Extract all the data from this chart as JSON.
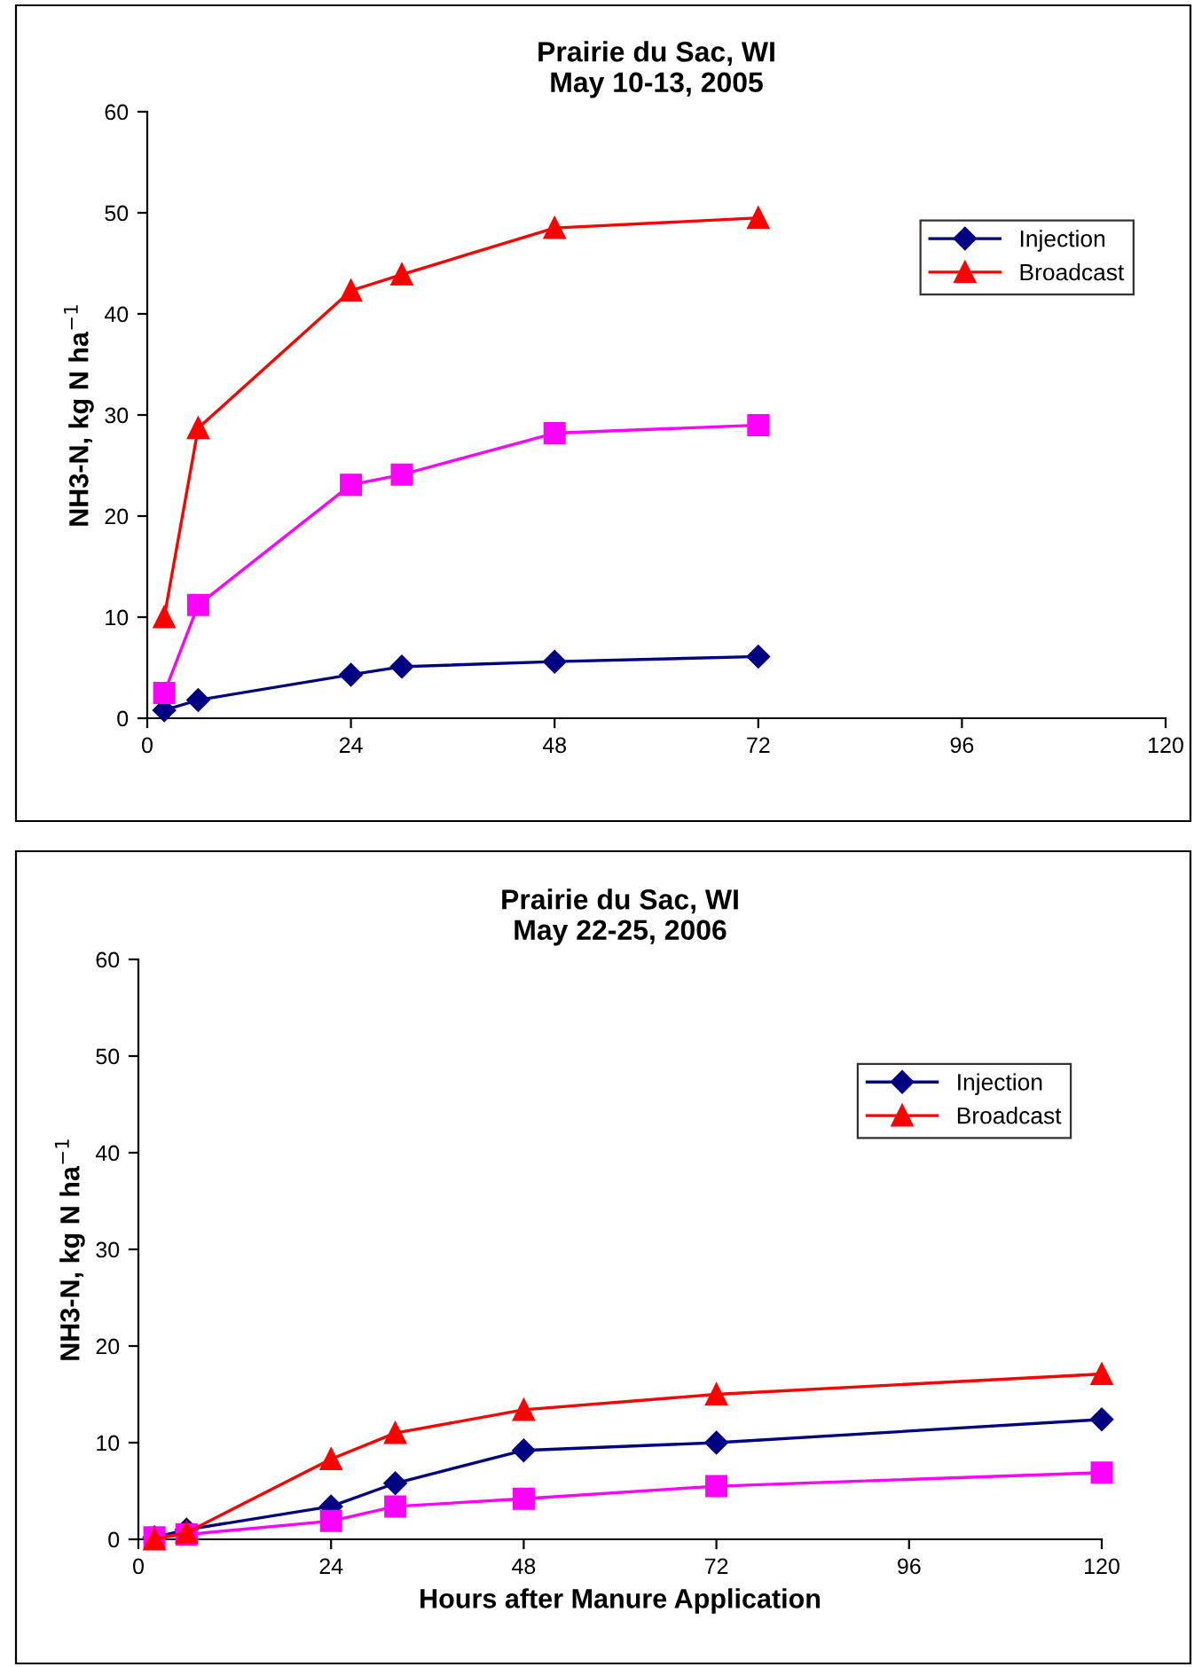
{
  "chart_data": [
    {
      "type": "line",
      "title": "Prairie du Sac, WI\nMay 10-13, 2005",
      "ylabel": "NH3-N, kg N ha$^{−1}$",
      "xlim": [
        0,
        120
      ],
      "xticks": [
        0,
        24,
        48,
        72,
        96,
        120
      ],
      "ylim": [
        0,
        60
      ],
      "yticks": [
        0,
        10,
        20,
        30,
        40,
        50,
        60
      ],
      "grid": false,
      "legend": "top right",
      "line_style": "solid",
      "series": [
        {
          "name": "Injection",
          "color": "#000080",
          "marker": "diamond",
          "x": [
            2,
            6,
            24,
            30,
            48,
            72
          ],
          "values": [
            0.8,
            1.8,
            4.3,
            5.1,
            5.6,
            6.1
          ]
        },
        {
          "color": "#ff00ff",
          "marker": "square",
          "x": [
            2,
            6,
            24,
            30,
            48,
            72
          ],
          "values": [
            2.5,
            11.2,
            23.1,
            24.1,
            28.2,
            29.0
          ]
        },
        {
          "name": "Broadcast",
          "color": "#ff0000",
          "marker": "triangle",
          "x": [
            2,
            6,
            24,
            30,
            48,
            72
          ],
          "values": [
            10.0,
            28.7,
            42.3,
            43.9,
            48.5,
            49.5
          ]
        }
      ]
    },
    {
      "type": "line",
      "title": "Prairie du Sac, WI\nMay 22-25, 2006",
      "xlabel": "Hours after Manure Application",
      "ylabel": "NH3-N, kg N ha$^{−1}$",
      "xlim": [
        0,
        120
      ],
      "xticks": [
        0,
        24,
        48,
        72,
        96,
        120
      ],
      "ylim": [
        0,
        60
      ],
      "yticks": [
        0,
        10,
        20,
        30,
        40,
        50,
        60
      ],
      "grid": false,
      "legend": "top right",
      "line_style": "solid",
      "series": [
        {
          "name": "Injection",
          "color": "#000080",
          "marker": "diamond",
          "x": [
            2,
            6,
            24,
            32,
            48,
            72,
            120
          ],
          "values": [
            0.2,
            1.0,
            3.4,
            5.8,
            9.2,
            10.0,
            12.4
          ]
        },
        {
          "color": "#ff00ff",
          "marker": "square",
          "x": [
            2,
            6,
            24,
            32,
            48,
            72,
            120
          ],
          "values": [
            0.2,
            0.5,
            1.9,
            3.4,
            4.2,
            5.5,
            6.9
          ]
        },
        {
          "name": "Broadcast",
          "color": "#ff0000",
          "marker": "triangle",
          "x": [
            2,
            6,
            24,
            32,
            48,
            72,
            120
          ],
          "values": [
            0.0,
            0.7,
            8.3,
            11.0,
            13.4,
            15.0,
            17.1
          ]
        }
      ]
    }
  ]
}
